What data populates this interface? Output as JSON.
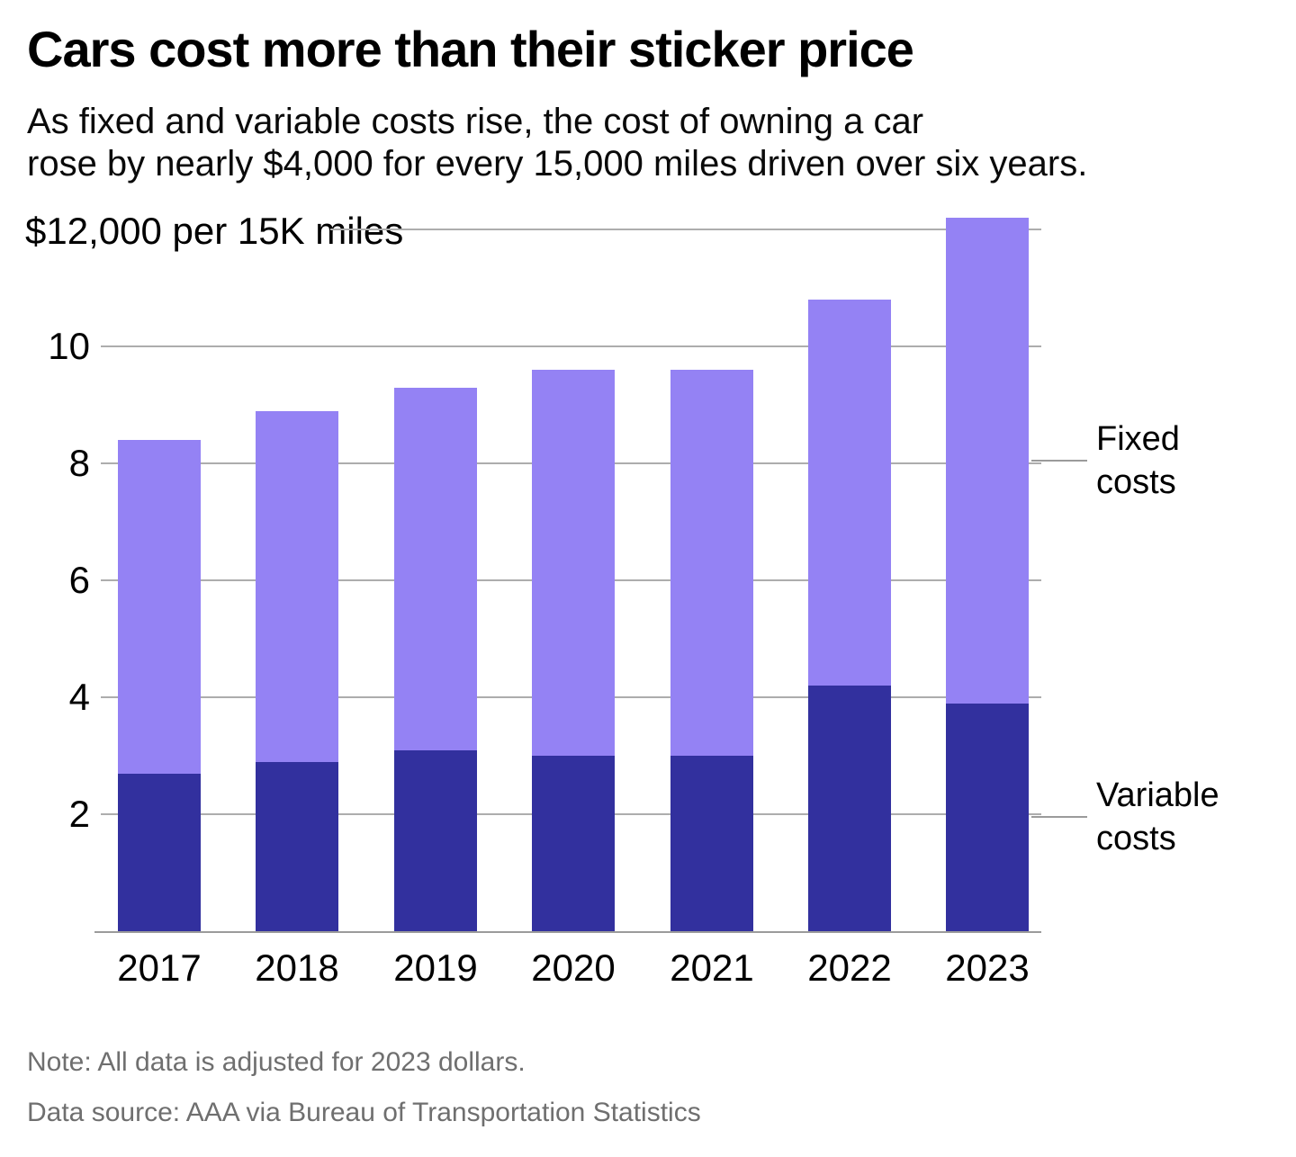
{
  "header": {
    "title": "Cars cost more than their sticker price",
    "subtitle": "As fixed and variable costs rise, the cost of owning a car\nrose by nearly $4,000 for every 15,000 miles driven over six years."
  },
  "chart_data": {
    "type": "bar",
    "stacked": true,
    "title": "Cars cost more than their sticker price",
    "unit_label": "$12,000 per 15K miles",
    "categories": [
      "2017",
      "2018",
      "2019",
      "2020",
      "2021",
      "2022",
      "2023"
    ],
    "series": [
      {
        "name": "Variable costs",
        "color": "#32309E",
        "values": [
          2.7,
          2.9,
          3.1,
          3.0,
          3.0,
          4.2,
          3.9
        ]
      },
      {
        "name": "Fixed costs",
        "color": "#9482F4",
        "values": [
          5.7,
          6.0,
          6.2,
          6.6,
          6.6,
          6.6,
          8.3
        ]
      }
    ],
    "totals": [
      8.4,
      8.9,
      9.3,
      9.6,
      9.6,
      10.8,
      12.2
    ],
    "y_ticks": [
      10,
      8,
      6,
      4,
      2
    ],
    "y_top_tick": 12,
    "ylim": [
      0,
      12.2
    ],
    "grid": true,
    "legend_position": "right-annotations",
    "grid_color": "#adadad",
    "axis_color": "#9b9b9b"
  },
  "footer": {
    "note": "Note: All data is adjusted for 2023 dollars.",
    "source": "Data source: AAA via Bureau of Transportation Statistics"
  }
}
